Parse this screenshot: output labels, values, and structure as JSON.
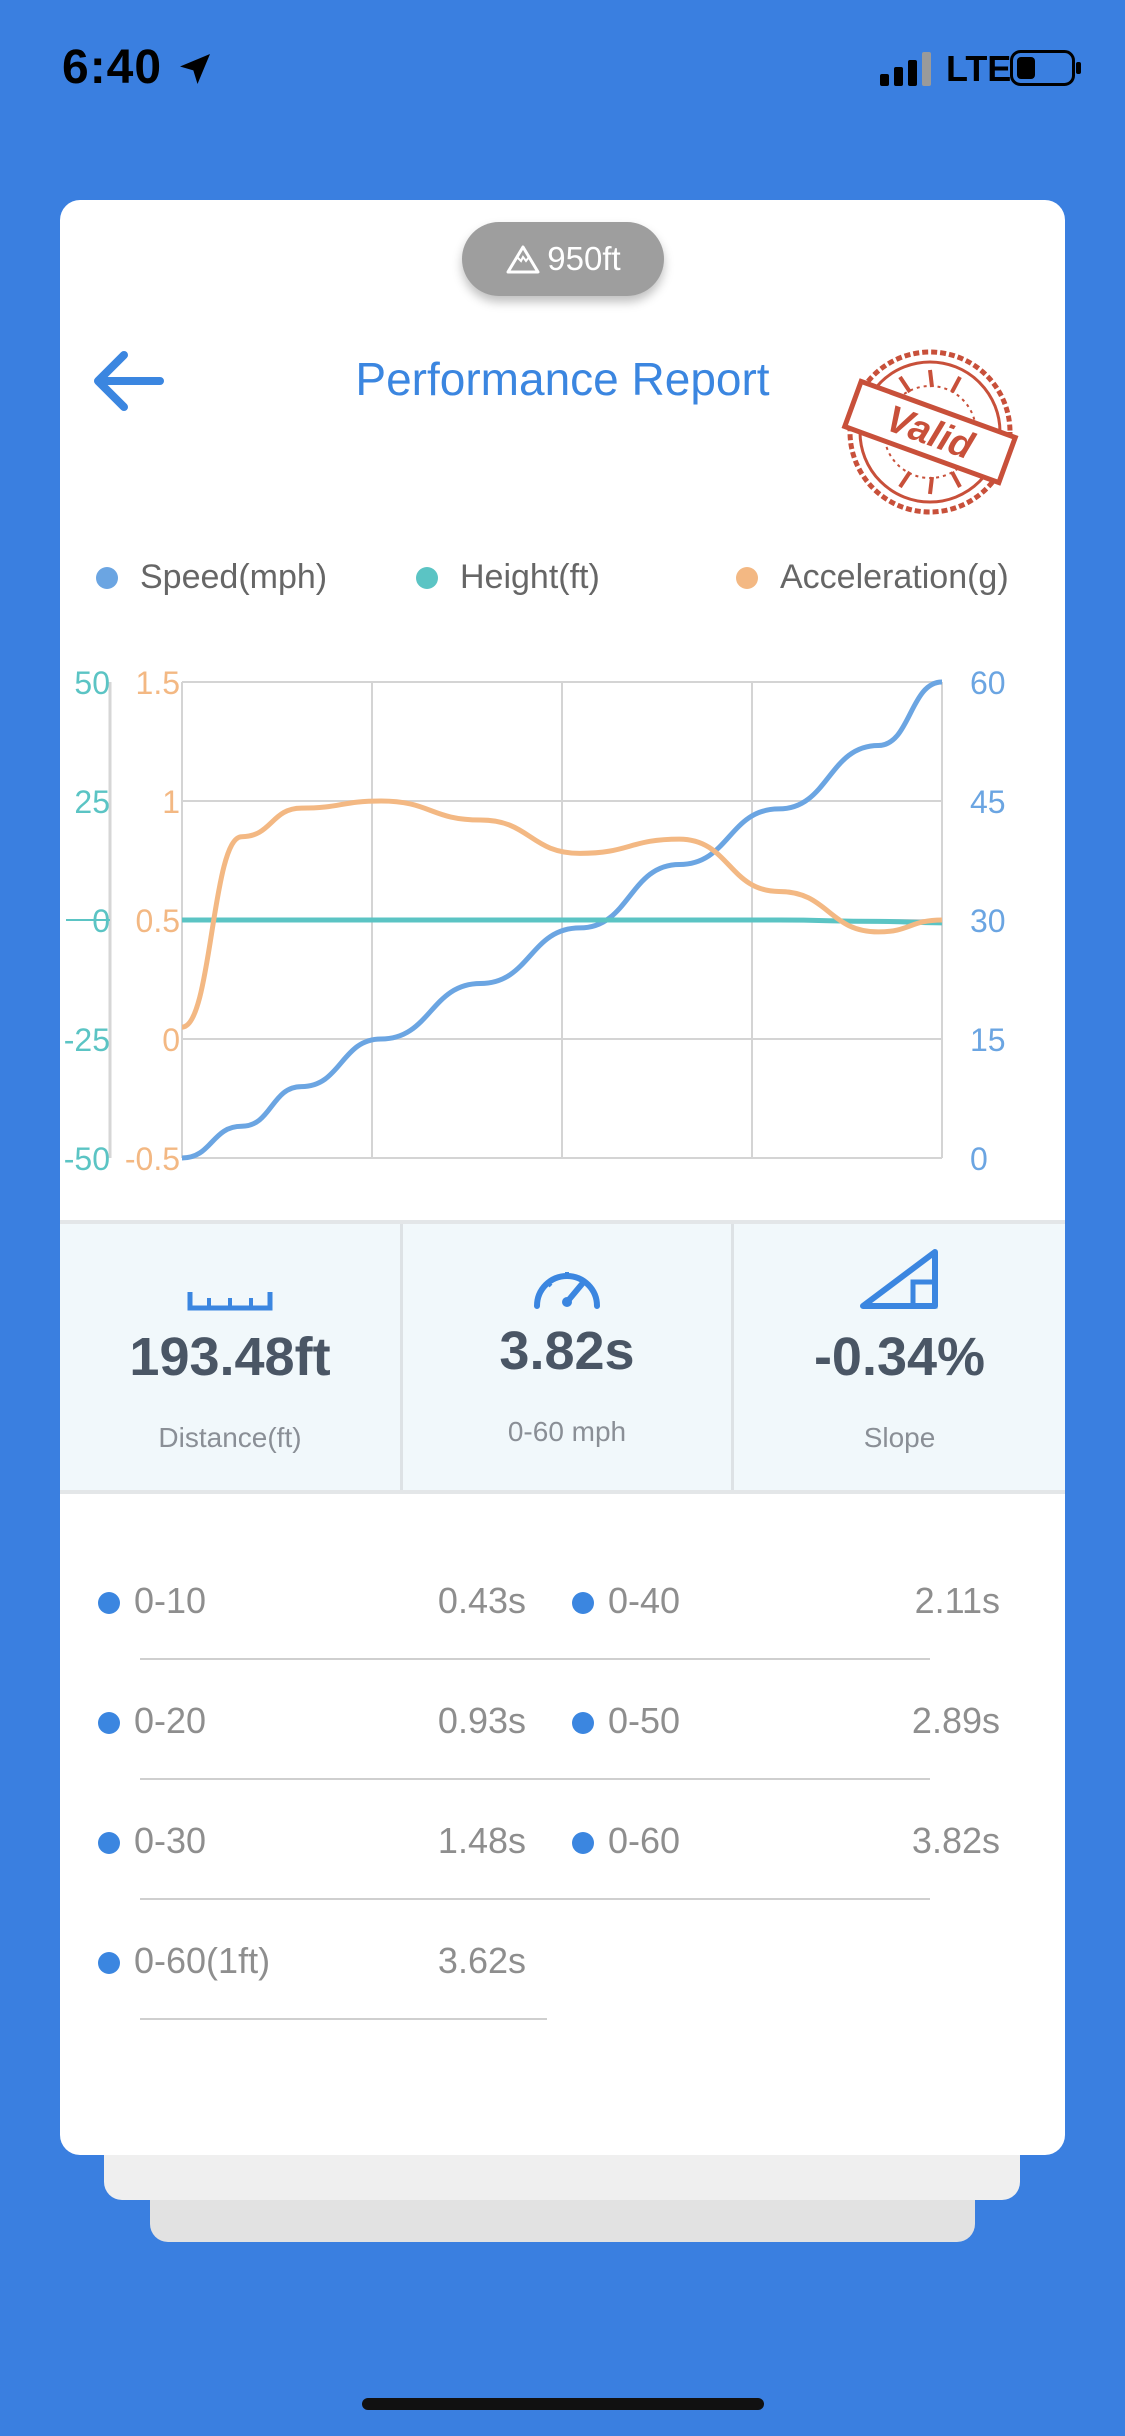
{
  "status_bar": {
    "time": "6:40",
    "network": "LTE"
  },
  "header": {
    "altitude": "950ft",
    "title": "Performance Report",
    "stamp": "Valid"
  },
  "colors": {
    "background": "#3A7FE0",
    "speed": "#6BA5E2",
    "height": "#5BC4C4",
    "acceleration": "#F3B883",
    "title": "#3B86E0"
  },
  "legend": [
    {
      "label": "Speed(mph)",
      "color": "#6BA5E2"
    },
    {
      "label": "Height(ft)",
      "color": "#5BC4C4"
    },
    {
      "label": "Acceleration(g)",
      "color": "#F3B883"
    }
  ],
  "chart_data": {
    "type": "line",
    "grid": true,
    "x": [
      0,
      0.3,
      0.6,
      1,
      1.5,
      2,
      2.5,
      3,
      3.5,
      3.82
    ],
    "axes": {
      "height": {
        "ticks": [
          "50",
          "25",
          "0",
          "-25",
          "-50"
        ],
        "range": [
          -50,
          50
        ]
      },
      "acceleration": {
        "ticks": [
          "1.5",
          "1",
          "0.5",
          "0",
          "-0.5"
        ],
        "range": [
          -0.5,
          1.5
        ]
      },
      "speed": {
        "ticks": [
          "60",
          "45",
          "30",
          "15",
          "0"
        ],
        "range": [
          0,
          60
        ]
      }
    },
    "series": [
      {
        "name": "Speed(mph)",
        "axis": "speed",
        "color": "#6BA5E2",
        "values": [
          0,
          4,
          9,
          15,
          22,
          29,
          37,
          44,
          52,
          60
        ]
      },
      {
        "name": "Height(ft)",
        "axis": "height",
        "color": "#5BC4C4",
        "values": [
          0,
          0,
          0,
          0,
          0,
          0,
          0,
          0,
          -0.3,
          -0.6
        ]
      },
      {
        "name": "Acceleration(g)",
        "axis": "acceleration",
        "color": "#F3B883",
        "values": [
          0.05,
          0.85,
          0.97,
          1.0,
          0.92,
          0.78,
          0.84,
          0.62,
          0.45,
          0.5
        ]
      }
    ]
  },
  "stats": [
    {
      "icon": "ruler-icon",
      "value": "193.48ft",
      "label": "Distance(ft)"
    },
    {
      "icon": "speedometer-icon",
      "value": "3.82s",
      "label": "0-60 mph"
    },
    {
      "icon": "slope-icon",
      "value": "-0.34%",
      "label": "Slope"
    }
  ],
  "times": [
    {
      "label": "0-10",
      "value": "0.43s"
    },
    {
      "label": "0-40",
      "value": "2.11s"
    },
    {
      "label": "0-20",
      "value": "0.93s"
    },
    {
      "label": "0-50",
      "value": "2.89s"
    },
    {
      "label": "0-30",
      "value": "1.48s"
    },
    {
      "label": "0-60",
      "value": "3.82s"
    },
    {
      "label": "0-60(1ft)",
      "value": "3.62s"
    }
  ]
}
